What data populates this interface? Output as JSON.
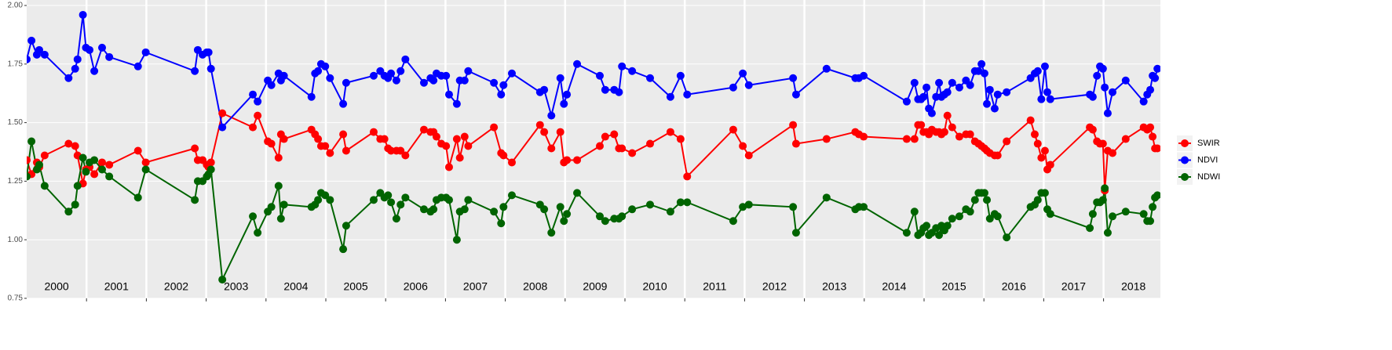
{
  "chart_data": {
    "type": "line",
    "x": [
      2000.0,
      2000.08,
      2000.17,
      2000.21,
      2000.3,
      2000.7,
      2000.81,
      2000.85,
      2000.94,
      2000.99,
      2001.05,
      2001.13,
      2001.26,
      2001.38,
      2001.86,
      2001.99,
      2002.81,
      2002.86,
      2002.94,
      2003.01,
      2003.04,
      2003.08,
      2003.27,
      2003.78,
      2003.86,
      2004.03,
      2004.09,
      2004.21,
      2004.25,
      2004.3,
      2004.76,
      2004.82,
      2004.87,
      2004.92,
      2004.99,
      2005.07,
      2005.29,
      2005.34,
      2005.8,
      2005.91,
      2005.98,
      2006.04,
      2006.09,
      2006.18,
      2006.25,
      2006.33,
      2006.64,
      2006.75,
      2006.8,
      2006.85,
      2006.93,
      2007.01,
      2007.06,
      2007.19,
      2007.24,
      2007.32,
      2007.38,
      2007.81,
      2007.93,
      2007.97,
      2008.11,
      2008.58,
      2008.65,
      2008.77,
      2008.92,
      2008.98,
      2009.03,
      2009.2,
      2009.58,
      2009.67,
      2009.82,
      2009.9,
      2009.95,
      2010.12,
      2010.42,
      2010.76,
      2010.93,
      2011.04,
      2011.81,
      2011.97,
      2012.07,
      2012.81,
      2012.86,
      2013.37,
      2013.85,
      2013.91,
      2013.99,
      2014.71,
      2014.84,
      2014.9,
      2014.95,
      2014.99,
      2015.04,
      2015.08,
      2015.13,
      2015.2,
      2015.25,
      2015.29,
      2015.34,
      2015.39,
      2015.47,
      2015.59,
      2015.7,
      2015.77,
      2015.85,
      2015.91,
      2015.96,
      2016.01,
      2016.05,
      2016.1,
      2016.18,
      2016.23,
      2016.38,
      2016.78,
      2016.85,
      2016.9,
      2016.96,
      2017.02,
      2017.06,
      2017.11,
      2017.77,
      2017.82,
      2017.89,
      2017.94,
      2017.99,
      2018.02,
      2018.07,
      2018.15,
      2018.37,
      2018.67,
      2018.73,
      2018.78,
      2018.82,
      2018.86,
      2018.9
    ],
    "series": [
      {
        "name": "SWIR",
        "color": "#ff0000",
        "values": [
          1.34,
          1.28,
          1.33,
          1.31,
          1.36,
          1.41,
          1.4,
          1.36,
          1.24,
          1.3,
          1.31,
          1.28,
          1.33,
          1.32,
          1.38,
          1.33,
          1.39,
          1.34,
          1.34,
          1.32,
          1.31,
          1.33,
          1.54,
          1.48,
          1.53,
          1.42,
          1.41,
          1.35,
          1.45,
          1.43,
          1.47,
          1.45,
          1.43,
          1.4,
          1.4,
          1.37,
          1.45,
          1.38,
          1.46,
          1.43,
          1.43,
          1.39,
          1.38,
          1.38,
          1.38,
          1.36,
          1.47,
          1.46,
          1.46,
          1.44,
          1.41,
          1.4,
          1.31,
          1.43,
          1.35,
          1.44,
          1.4,
          1.48,
          1.37,
          1.36,
          1.33,
          1.49,
          1.46,
          1.39,
          1.46,
          1.33,
          1.34,
          1.34,
          1.4,
          1.44,
          1.45,
          1.39,
          1.39,
          1.37,
          1.41,
          1.46,
          1.43,
          1.27,
          1.47,
          1.4,
          1.36,
          1.49,
          1.41,
          1.43,
          1.46,
          1.45,
          1.44,
          1.43,
          1.43,
          1.49,
          1.49,
          1.46,
          1.46,
          1.45,
          1.47,
          1.46,
          1.46,
          1.45,
          1.46,
          1.53,
          1.48,
          1.44,
          1.45,
          1.45,
          1.42,
          1.41,
          1.4,
          1.39,
          1.38,
          1.37,
          1.36,
          1.36,
          1.42,
          1.51,
          1.45,
          1.41,
          1.35,
          1.38,
          1.3,
          1.32,
          1.48,
          1.47,
          1.42,
          1.41,
          1.41,
          1.21,
          1.38,
          1.37,
          1.43,
          1.48,
          1.47,
          1.48,
          1.44,
          1.39,
          1.39
        ]
      },
      {
        "name": "NDVI",
        "color": "#0000ff",
        "values": [
          1.77,
          1.85,
          1.79,
          1.81,
          1.79,
          1.69,
          1.73,
          1.77,
          1.96,
          1.82,
          1.81,
          1.72,
          1.82,
          1.78,
          1.74,
          1.8,
          1.72,
          1.81,
          1.79,
          1.8,
          1.8,
          1.73,
          1.48,
          1.62,
          1.59,
          1.68,
          1.66,
          1.71,
          1.68,
          1.7,
          1.61,
          1.71,
          1.72,
          1.75,
          1.74,
          1.69,
          1.58,
          1.67,
          1.7,
          1.72,
          1.7,
          1.69,
          1.71,
          1.68,
          1.72,
          1.77,
          1.67,
          1.69,
          1.68,
          1.71,
          1.7,
          1.7,
          1.62,
          1.58,
          1.68,
          1.68,
          1.72,
          1.67,
          1.62,
          1.66,
          1.71,
          1.63,
          1.64,
          1.53,
          1.69,
          1.58,
          1.62,
          1.75,
          1.7,
          1.64,
          1.64,
          1.63,
          1.74,
          1.72,
          1.69,
          1.61,
          1.7,
          1.62,
          1.65,
          1.71,
          1.66,
          1.69,
          1.62,
          1.73,
          1.69,
          1.69,
          1.7,
          1.59,
          1.67,
          1.6,
          1.6,
          1.61,
          1.65,
          1.56,
          1.54,
          1.61,
          1.67,
          1.61,
          1.62,
          1.63,
          1.67,
          1.65,
          1.68,
          1.66,
          1.72,
          1.72,
          1.75,
          1.71,
          1.58,
          1.64,
          1.56,
          1.62,
          1.63,
          1.69,
          1.71,
          1.72,
          1.6,
          1.74,
          1.63,
          1.6,
          1.62,
          1.61,
          1.7,
          1.74,
          1.73,
          1.65,
          1.54,
          1.63,
          1.68,
          1.59,
          1.62,
          1.64,
          1.7,
          1.69,
          1.73
        ]
      },
      {
        "name": "NDWI",
        "color": "#006400",
        "values": [
          1.27,
          1.42,
          1.3,
          1.32,
          1.23,
          1.12,
          1.15,
          1.23,
          1.35,
          1.29,
          1.33,
          1.34,
          1.3,
          1.27,
          1.18,
          1.3,
          1.17,
          1.25,
          1.25,
          1.27,
          1.28,
          1.3,
          0.83,
          1.1,
          1.03,
          1.12,
          1.14,
          1.23,
          1.09,
          1.15,
          1.14,
          1.15,
          1.17,
          1.2,
          1.19,
          1.17,
          0.96,
          1.06,
          1.17,
          1.2,
          1.18,
          1.19,
          1.16,
          1.09,
          1.15,
          1.18,
          1.13,
          1.12,
          1.13,
          1.17,
          1.18,
          1.18,
          1.17,
          1.0,
          1.12,
          1.13,
          1.17,
          1.12,
          1.07,
          1.14,
          1.19,
          1.15,
          1.13,
          1.03,
          1.14,
          1.08,
          1.11,
          1.2,
          1.1,
          1.08,
          1.09,
          1.09,
          1.1,
          1.13,
          1.15,
          1.12,
          1.16,
          1.16,
          1.08,
          1.14,
          1.15,
          1.14,
          1.03,
          1.18,
          1.13,
          1.14,
          1.14,
          1.03,
          1.12,
          1.02,
          1.03,
          1.05,
          1.06,
          1.02,
          1.03,
          1.05,
          1.02,
          1.06,
          1.04,
          1.06,
          1.09,
          1.1,
          1.13,
          1.12,
          1.17,
          1.2,
          1.2,
          1.2,
          1.17,
          1.09,
          1.11,
          1.1,
          1.01,
          1.14,
          1.15,
          1.17,
          1.2,
          1.2,
          1.13,
          1.11,
          1.05,
          1.11,
          1.16,
          1.16,
          1.17,
          1.22,
          1.03,
          1.1,
          1.12,
          1.11,
          1.08,
          1.08,
          1.14,
          1.18,
          1.19
        ]
      }
    ],
    "xlim": [
      2000,
      2018.95
    ],
    "xgrid": [
      2001,
      2002,
      2003,
      2004,
      2005,
      2006,
      2007,
      2008,
      2009,
      2010,
      2011,
      2012,
      2013,
      2014,
      2015,
      2016,
      2017,
      2018
    ],
    "xticks": [
      {
        "value": 2000.5,
        "label": "2000"
      },
      {
        "value": 2001.5,
        "label": "2001"
      },
      {
        "value": 2002.5,
        "label": "2002"
      },
      {
        "value": 2003.5,
        "label": "2003"
      },
      {
        "value": 2004.5,
        "label": "2004"
      },
      {
        "value": 2005.5,
        "label": "2005"
      },
      {
        "value": 2006.5,
        "label": "2006"
      },
      {
        "value": 2007.5,
        "label": "2007"
      },
      {
        "value": 2008.5,
        "label": "2008"
      },
      {
        "value": 2009.5,
        "label": "2009"
      },
      {
        "value": 2010.5,
        "label": "2010"
      },
      {
        "value": 2011.5,
        "label": "2011"
      },
      {
        "value": 2012.5,
        "label": "2012"
      },
      {
        "value": 2013.5,
        "label": "2013"
      },
      {
        "value": 2014.5,
        "label": "2014"
      },
      {
        "value": 2015.5,
        "label": "2015"
      },
      {
        "value": 2016.5,
        "label": "2016"
      },
      {
        "value": 2017.5,
        "label": "2017"
      },
      {
        "value": 2018.5,
        "label": "2018"
      }
    ],
    "ylim": [
      0.75,
      2.0
    ],
    "yticks": [
      0.75,
      {
        "value": 1,
        "label": "1.00"
      },
      {
        "value": 1.25,
        "label": "1.25"
      },
      {
        "value": 1.5,
        "label": "1.50"
      },
      {
        "value": 1.75,
        "label": "1.75"
      },
      {
        "value": 2,
        "label": "2.00"
      }
    ],
    "legend": "right"
  }
}
